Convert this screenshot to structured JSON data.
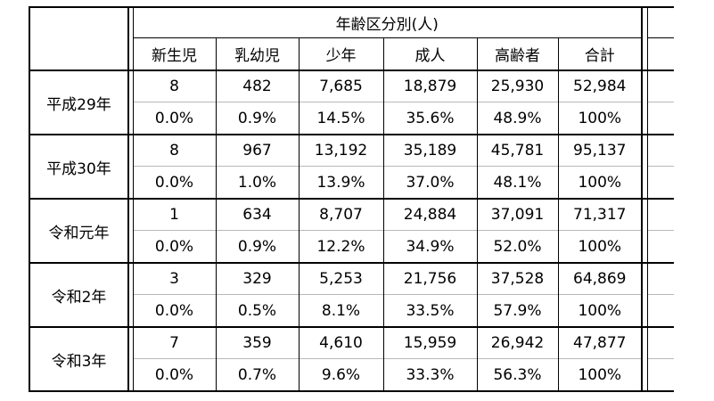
{
  "table": {
    "group_header": "年齢区分別(人)",
    "columns": [
      "新生児",
      "乳幼児",
      "少年",
      "成人",
      "高齢者",
      "合計"
    ],
    "rows": [
      {
        "year": "平成29年",
        "counts": [
          "8",
          "482",
          "7,685",
          "18,879",
          "25,930",
          "52,984"
        ],
        "percents": [
          "0.0%",
          "0.9%",
          "14.5%",
          "35.6%",
          "48.9%",
          "100%"
        ]
      },
      {
        "year": "平成30年",
        "counts": [
          "8",
          "967",
          "13,192",
          "35,189",
          "45,781",
          "95,137"
        ],
        "percents": [
          "0.0%",
          "1.0%",
          "13.9%",
          "37.0%",
          "48.1%",
          "100%"
        ]
      },
      {
        "year": "令和元年",
        "counts": [
          "1",
          "634",
          "8,707",
          "24,884",
          "37,091",
          "71,317"
        ],
        "percents": [
          "0.0%",
          "0.9%",
          "12.2%",
          "34.9%",
          "52.0%",
          "100%"
        ]
      },
      {
        "year": "令和2年",
        "counts": [
          "3",
          "329",
          "5,253",
          "21,756",
          "37,528",
          "64,869"
        ],
        "percents": [
          "0.0%",
          "0.5%",
          "8.1%",
          "33.5%",
          "57.9%",
          "100%"
        ]
      },
      {
        "year": "令和3年",
        "counts": [
          "7",
          "359",
          "4,610",
          "15,959",
          "26,942",
          "47,877"
        ],
        "percents": [
          "0.0%",
          "0.7%",
          "9.6%",
          "33.3%",
          "56.3%",
          "100%"
        ]
      }
    ]
  }
}
